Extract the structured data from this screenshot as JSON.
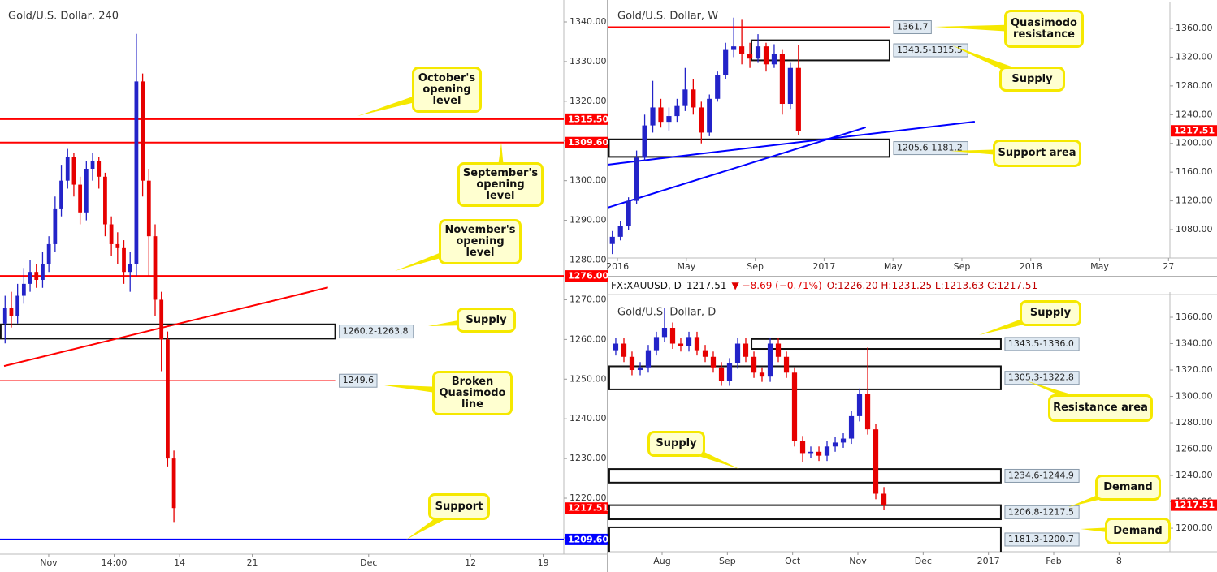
{
  "chart_data": [
    {
      "type": "candlestick",
      "title": "Gold/U.S. Dollar, 240",
      "up_color": "#2323c8",
      "down_color": "#e60000",
      "xlim": [
        -3.35,
        35.42
      ],
      "ylim": [
        1205.9,
        1344.5
      ],
      "xticks": [
        {
          "value": 0,
          "label": "Nov"
        },
        {
          "value": 4.5,
          "label": "14:00"
        },
        {
          "value": 9,
          "label": "14"
        },
        {
          "value": 14,
          "label": "21"
        },
        {
          "value": 22,
          "label": "Dec"
        },
        {
          "value": 29,
          "label": "12"
        },
        {
          "value": 34,
          "label": "19"
        }
      ],
      "yticks": [
        {
          "value": 1210,
          "label": "1210.00"
        },
        {
          "value": 1220,
          "label": "1220.00"
        },
        {
          "value": 1230,
          "label": "1230.00"
        },
        {
          "value": 1240,
          "label": "1240.00"
        },
        {
          "value": 1250,
          "label": "1250.00"
        },
        {
          "value": 1260,
          "label": "1260.00"
        },
        {
          "value": 1270,
          "label": "1270.00"
        },
        {
          "value": 1280,
          "label": "1280.00"
        },
        {
          "value": 1290,
          "label": "1290.00"
        },
        {
          "value": 1300,
          "label": "1300.00"
        },
        {
          "value": 1310,
          "label": "1310.00"
        },
        {
          "value": 1320,
          "label": "1320.00"
        },
        {
          "value": 1330,
          "label": "1330.00"
        },
        {
          "value": 1340,
          "label": "1340.00"
        }
      ],
      "candles": {
        "x": [
          -3.0,
          -2.57,
          -2.14,
          -1.71,
          -1.28,
          -0.85,
          -0.42,
          0.01,
          0.44,
          0.87,
          1.3,
          1.73,
          2.16,
          2.59,
          3.02,
          3.45,
          3.88,
          4.31,
          4.74,
          5.17,
          5.6,
          6.03,
          6.46,
          6.89,
          7.32,
          7.75,
          8.18,
          8.61
        ],
        "open": [
          1264,
          1268,
          1266,
          1271,
          1274,
          1277,
          1275,
          1279,
          1284,
          1293,
          1300,
          1306,
          1299,
          1292,
          1303,
          1305,
          1301,
          1289,
          1284,
          1283,
          1277,
          1279,
          1325,
          1300,
          1286,
          1270,
          1260,
          1230
        ],
        "high": [
          1271,
          1272,
          1274,
          1278,
          1280,
          1279,
          1282,
          1286,
          1296,
          1304,
          1308,
          1307,
          1301,
          1305,
          1307,
          1306,
          1302,
          1291,
          1287,
          1285,
          1282,
          1337,
          1327,
          1303,
          1289,
          1272,
          1262,
          1232
        ],
        "low": [
          1259,
          1263,
          1264,
          1269,
          1272,
          1273,
          1273,
          1277,
          1282,
          1291,
          1298,
          1296,
          1289,
          1290,
          1300,
          1298,
          1286,
          1281,
          1279,
          1274,
          1272,
          1276,
          1296,
          1276,
          1266,
          1252,
          1228,
          1214
        ],
        "close": [
          1268,
          1266,
          1271,
          1274,
          1277,
          1275,
          1279,
          1284,
          1293,
          1300,
          1306,
          1299,
          1292,
          1303,
          1305,
          1301,
          1289,
          1284,
          1283,
          1277,
          1279,
          1325,
          1300,
          1286,
          1270,
          1260,
          1230,
          1217.51
        ]
      },
      "levels": [
        {
          "value": 1315.5,
          "label": "1315.50",
          "color": "#ff0000",
          "width": 2,
          "label_style": "axis"
        },
        {
          "value": 1309.6,
          "label": "1309.60",
          "color": "#ff0000",
          "width": 2,
          "label_style": "axis"
        },
        {
          "value": 1276,
          "label": "1276.00",
          "color": "#ff0000",
          "width": 2,
          "label_style": "axis"
        },
        {
          "value": 1249.6,
          "label": "1249.6",
          "color": "#ff0000",
          "width": 1.5,
          "label_style": "box",
          "x": [
            -3.35,
            19.7
          ]
        },
        {
          "value": 1209.6,
          "label": "1209.60",
          "color": "#0000ff",
          "width": 2,
          "label_style": "axis"
        }
      ],
      "zones": [
        {
          "range": [
            1260.2,
            1263.8
          ],
          "label": "1260.2-1263.8",
          "x": [
            -3.3,
            19.7
          ]
        }
      ],
      "trendlines": [
        {
          "x": [
            -3.07,
            19.2
          ],
          "y": [
            1253.3,
            1273.1
          ],
          "color": "#ff0000"
        }
      ],
      "price_tag": {
        "value": 1217.51,
        "label": "1217.51",
        "color": "#ff0000"
      },
      "annotations": [
        "October's opening level",
        "September's opening level",
        "November's opening level",
        "Supply",
        "Broken Quasimodo line",
        "Support"
      ]
    },
    {
      "type": "candlestick",
      "title": "Gold/U.S. Dollar, W",
      "up_color": "#2323c8",
      "down_color": "#e60000",
      "xlim": [
        -0.57,
        32.08
      ],
      "ylim": [
        1040.5,
        1390.5
      ],
      "xticks": [
        {
          "value": 0,
          "label": "2016"
        },
        {
          "value": 4,
          "label": "May"
        },
        {
          "value": 8,
          "label": "Sep"
        },
        {
          "value": 12,
          "label": "2017"
        },
        {
          "value": 16,
          "label": "May"
        },
        {
          "value": 20,
          "label": "Sep"
        },
        {
          "value": 24,
          "label": "2018"
        },
        {
          "value": 28,
          "label": "May"
        },
        {
          "value": 32,
          "label": "27"
        }
      ],
      "yticks": [
        {
          "value": 1080,
          "label": "1080.00"
        },
        {
          "value": 1120,
          "label": "1120.00"
        },
        {
          "value": 1160,
          "label": "1160.00"
        },
        {
          "value": 1200,
          "label": "1200.00"
        },
        {
          "value": 1240,
          "label": "1240.00"
        },
        {
          "value": 1280,
          "label": "1280.00"
        },
        {
          "value": 1320,
          "label": "1320.00"
        },
        {
          "value": 1360,
          "label": "1360.00"
        }
      ],
      "candles": {
        "x": [
          -0.3,
          0.17,
          0.64,
          1.11,
          1.58,
          2.05,
          2.52,
          2.99,
          3.46,
          3.93,
          4.4,
          4.87,
          5.34,
          5.81,
          6.28,
          6.75,
          7.22,
          7.69,
          8.16,
          8.63,
          9.1,
          9.57,
          10.04,
          10.51
        ],
        "open": [
          1060,
          1070,
          1085,
          1120,
          1180,
          1225,
          1250,
          1230,
          1238,
          1252,
          1275,
          1250,
          1215,
          1262,
          1295,
          1330,
          1335,
          1325,
          1318,
          1335,
          1310,
          1325,
          1255,
          1305
        ],
        "high": [
          1078,
          1092,
          1125,
          1190,
          1240,
          1287,
          1262,
          1250,
          1262,
          1305,
          1290,
          1258,
          1268,
          1300,
          1340,
          1375,
          1372,
          1340,
          1352,
          1340,
          1338,
          1330,
          1312,
          1337
        ],
        "low": [
          1046,
          1065,
          1080,
          1115,
          1175,
          1215,
          1222,
          1218,
          1230,
          1245,
          1240,
          1200,
          1210,
          1258,
          1290,
          1320,
          1310,
          1305,
          1312,
          1300,
          1305,
          1240,
          1248,
          1211
        ],
        "close": [
          1070,
          1085,
          1120,
          1180,
          1225,
          1250,
          1230,
          1238,
          1252,
          1275,
          1250,
          1215,
          1262,
          1295,
          1330,
          1335,
          1325,
          1318,
          1335,
          1310,
          1325,
          1255,
          1305,
          1217.51
        ]
      },
      "levels": [
        {
          "value": 1361.7,
          "label": "1361.7",
          "color": "#ff0000",
          "width": 2,
          "label_style": "box",
          "x": [
            -0.57,
            15.8
          ]
        }
      ],
      "zones": [
        {
          "range": [
            1315.5,
            1343.5
          ],
          "label": "1343.5-1315.5",
          "x": [
            7.78,
            15.8
          ]
        },
        {
          "range": [
            1181.2,
            1205.6
          ],
          "label": "1205.6-1181.2",
          "x": [
            -0.5,
            15.8
          ]
        }
      ],
      "trendlines": [
        {
          "x": [
            -0.57,
            20.75
          ],
          "y": [
            1170.4,
            1230.2
          ],
          "color": "#0000ff"
        },
        {
          "x": [
            -0.57,
            14.42
          ],
          "y": [
            1110.6,
            1222.3
          ],
          "color": "#0000ff"
        }
      ],
      "price_tag": {
        "value": 1217.51,
        "label": "1217.51",
        "color": "#ff0000"
      },
      "annotations": [
        "Quasimodo resistance",
        "Supply",
        "Support area"
      ]
    },
    {
      "type": "candlestick",
      "title": "Gold/U.S. Dollar, D",
      "header": {
        "symbol": "FX:XAUUSD, D",
        "last": "1217.51",
        "change": "▼ −8.69 (−0.71%)",
        "ohlc": "O:1226.20 H:1231.25 L:1213.63 C:1217.51"
      },
      "up_color": "#2323c8",
      "down_color": "#e60000",
      "xlim": [
        0.166,
        8.78
      ],
      "ylim": [
        1182.2,
        1376
      ],
      "xticks": [
        {
          "value": 1,
          "label": "Aug"
        },
        {
          "value": 2,
          "label": "Sep"
        },
        {
          "value": 3,
          "label": "Oct"
        },
        {
          "value": 4,
          "label": "Nov"
        },
        {
          "value": 5,
          "label": "Dec"
        },
        {
          "value": 6,
          "label": "2017"
        },
        {
          "value": 7,
          "label": "Feb"
        },
        8
      ],
      "yticks": [
        {
          "value": 1200,
          "label": "1200.00"
        },
        {
          "value": 1220,
          "label": "1220.00"
        },
        {
          "value": 1240,
          "label": "1240.00"
        },
        {
          "value": 1260,
          "label": "1260.00"
        },
        {
          "value": 1280,
          "label": "1280.00"
        },
        {
          "value": 1300,
          "label": "1300.00"
        },
        {
          "value": 1320,
          "label": "1320.00"
        },
        {
          "value": 1340,
          "label": "1340.00"
        },
        {
          "value": 1360,
          "label": "1360.00"
        }
      ],
      "candles": {
        "x": [
          0.29,
          0.415,
          0.539,
          0.664,
          0.788,
          0.913,
          1.037,
          1.162,
          1.286,
          1.411,
          1.535,
          1.66,
          1.784,
          1.909,
          2.033,
          2.158,
          2.282,
          2.407,
          2.531,
          2.656,
          2.78,
          2.905,
          3.029,
          3.154,
          3.278,
          3.403,
          3.527,
          3.652,
          3.776,
          3.901,
          4.025,
          4.15,
          4.274,
          4.399
        ],
        "open": [
          1335,
          1340,
          1330,
          1320,
          1322,
          1335,
          1345,
          1352,
          1340,
          1338,
          1345,
          1335,
          1330,
          1322,
          1312,
          1325,
          1340,
          1330,
          1318,
          1315,
          1340,
          1330,
          1318,
          1266,
          1257,
          1258,
          1255,
          1262,
          1265,
          1268,
          1285,
          1302,
          1275,
          1226.2
        ],
        "high": [
          1344,
          1344,
          1334,
          1326,
          1339,
          1349,
          1367,
          1356,
          1344,
          1349,
          1349,
          1339,
          1334,
          1326,
          1329,
          1344,
          1344,
          1334,
          1322,
          1344,
          1344,
          1334,
          1322,
          1270,
          1262,
          1262,
          1266,
          1269,
          1272,
          1289,
          1306,
          1337,
          1279,
          1231.25
        ],
        "low": [
          1331,
          1326,
          1316,
          1316,
          1318,
          1331,
          1341,
          1336,
          1334,
          1334,
          1331,
          1326,
          1318,
          1308,
          1308,
          1321,
          1326,
          1314,
          1311,
          1311,
          1326,
          1314,
          1262,
          1250,
          1253,
          1251,
          1251,
          1258,
          1261,
          1264,
          1281,
          1271,
          1222,
          1213.63
        ],
        "close": [
          1340,
          1330,
          1320,
          1322,
          1335,
          1345,
          1352,
          1340,
          1338,
          1345,
          1335,
          1330,
          1322,
          1312,
          1325,
          1340,
          1330,
          1318,
          1315,
          1340,
          1330,
          1318,
          1266,
          1257,
          1258,
          1255,
          1262,
          1265,
          1268,
          1285,
          1302,
          1275,
          1226.2,
          1217.51
        ]
      },
      "levels": [],
      "zones": [
        {
          "range": [
            1336.0,
            1343.5
          ],
          "label": "1343.5-1336.0",
          "x": [
            2.37,
            6.19
          ]
        },
        {
          "range": [
            1305.3,
            1322.8
          ],
          "label": "1305.3-1322.8",
          "x": [
            0.19,
            6.19
          ]
        },
        {
          "range": [
            1234.6,
            1244.9
          ],
          "label": "1234.6-1244.9",
          "x": [
            0.19,
            6.19
          ]
        },
        {
          "range": [
            1206.8,
            1217.5
          ],
          "label": "1206.8-1217.5",
          "x": [
            0.19,
            6.19
          ]
        },
        {
          "range": [
            1181.3,
            1200.7
          ],
          "label": "1181.3-1200.7",
          "x": [
            0.19,
            6.19
          ]
        }
      ],
      "trendlines": [],
      "price_tag": {
        "value": 1217.51,
        "label": "1217.51",
        "color": "#ff0000"
      },
      "annotations": [
        "Supply",
        "Resistance area",
        "Supply",
        "Demand",
        "Demand"
      ]
    }
  ]
}
